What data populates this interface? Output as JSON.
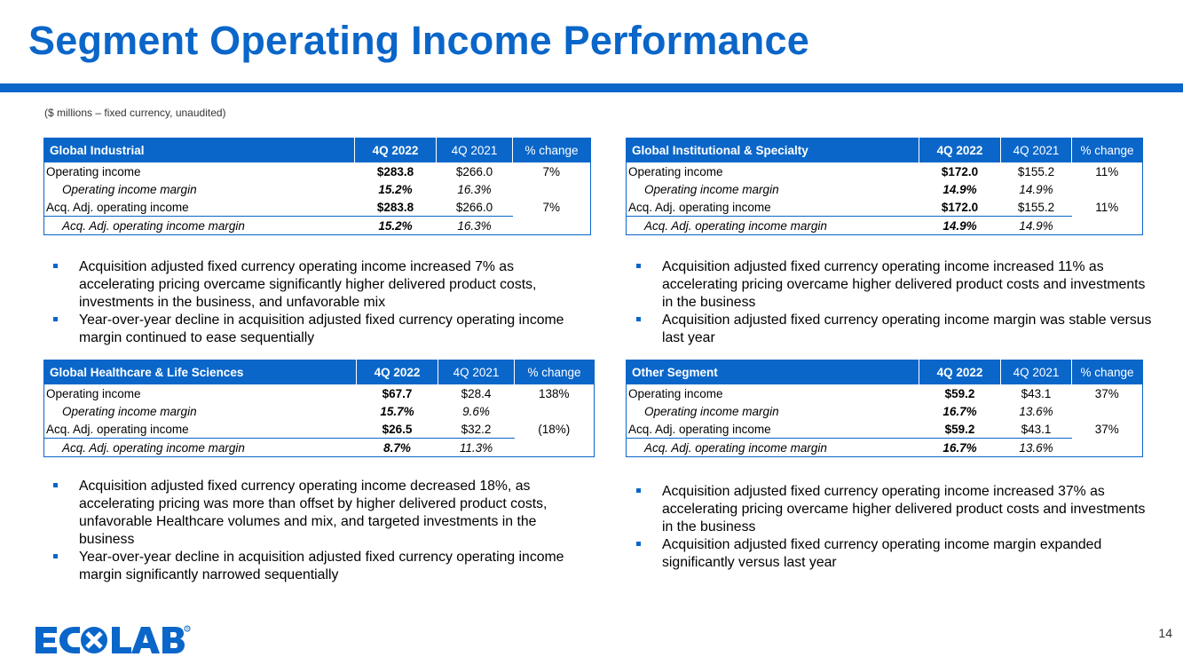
{
  "title": "Segment Operating Income Performance",
  "subtitle": "($ millions – fixed currency, unaudited)",
  "page_number": "14",
  "logo_text": "ECOLAB",
  "colors": {
    "brand_blue": "#0a66c9"
  },
  "headers": {
    "current": "4Q 2022",
    "prior": "4Q 2021",
    "change": "% change"
  },
  "segments": [
    {
      "name": "Global Industrial",
      "rows": [
        {
          "label": "Operating income",
          "current": "$283.8",
          "prior": "$266.0",
          "change": "7%"
        },
        {
          "label": "Operating income margin",
          "current": "15.2%",
          "prior": "16.3%",
          "change": ""
        },
        {
          "label": "Acq. Adj. operating income",
          "current": "$283.8",
          "prior": "$266.0",
          "change": "7%"
        },
        {
          "label": "Acq. Adj. operating income margin",
          "current": "15.2%",
          "prior": "16.3%",
          "change": ""
        }
      ],
      "bullets": [
        "Acquisition adjusted fixed currency operating income increased 7% as accelerating pricing overcame significantly higher delivered product costs, investments in the business, and unfavorable mix",
        "Year-over-year decline in acquisition adjusted fixed currency operating income margin continued to ease sequentially"
      ]
    },
    {
      "name": "Global Institutional & Specialty",
      "rows": [
        {
          "label": "Operating income",
          "current": "$172.0",
          "prior": "$155.2",
          "change": "11%"
        },
        {
          "label": "Operating income margin",
          "current": "14.9%",
          "prior": "14.9%",
          "change": ""
        },
        {
          "label": "Acq. Adj. operating income",
          "current": "$172.0",
          "prior": "$155.2",
          "change": "11%"
        },
        {
          "label": "Acq. Adj. operating income margin",
          "current": "14.9%",
          "prior": "14.9%",
          "change": ""
        }
      ],
      "bullets": [
        "Acquisition adjusted fixed currency operating income increased 11% as accelerating pricing overcame higher delivered product costs and investments in the business",
        "Acquisition adjusted fixed currency operating income margin was stable versus last year"
      ]
    },
    {
      "name": "Global Healthcare & Life Sciences",
      "rows": [
        {
          "label": "Operating income",
          "current": "$67.7",
          "prior": "$28.4",
          "change": "138%"
        },
        {
          "label": "Operating income margin",
          "current": "15.7%",
          "prior": "9.6%",
          "change": ""
        },
        {
          "label": "Acq. Adj. operating income",
          "current": "$26.5",
          "prior": "$32.2",
          "change": "(18%)"
        },
        {
          "label": "Acq. Adj. operating income margin",
          "current": "8.7%",
          "prior": "11.3%",
          "change": ""
        }
      ],
      "bullets": [
        "Acquisition adjusted fixed currency operating income decreased 18%, as accelerating pricing was more than offset by higher delivered product costs, unfavorable Healthcare volumes and mix, and targeted investments in the business",
        "Year-over-year decline in acquisition adjusted fixed currency operating income margin significantly narrowed sequentially"
      ]
    },
    {
      "name": "Other Segment",
      "rows": [
        {
          "label": "Operating income",
          "current": "$59.2",
          "prior": "$43.1",
          "change": "37%"
        },
        {
          "label": "Operating income margin",
          "current": "16.7%",
          "prior": "13.6%",
          "change": ""
        },
        {
          "label": "Acq. Adj. operating income",
          "current": "$59.2",
          "prior": "$43.1",
          "change": "37%"
        },
        {
          "label": "Acq. Adj. operating income margin",
          "current": "16.7%",
          "prior": "13.6%",
          "change": ""
        }
      ],
      "bullets": [
        "Acquisition adjusted fixed currency operating income increased 37% as accelerating pricing overcame higher delivered product costs and investments in the business",
        "Acquisition adjusted fixed currency operating income margin expanded significantly versus last year"
      ]
    }
  ]
}
